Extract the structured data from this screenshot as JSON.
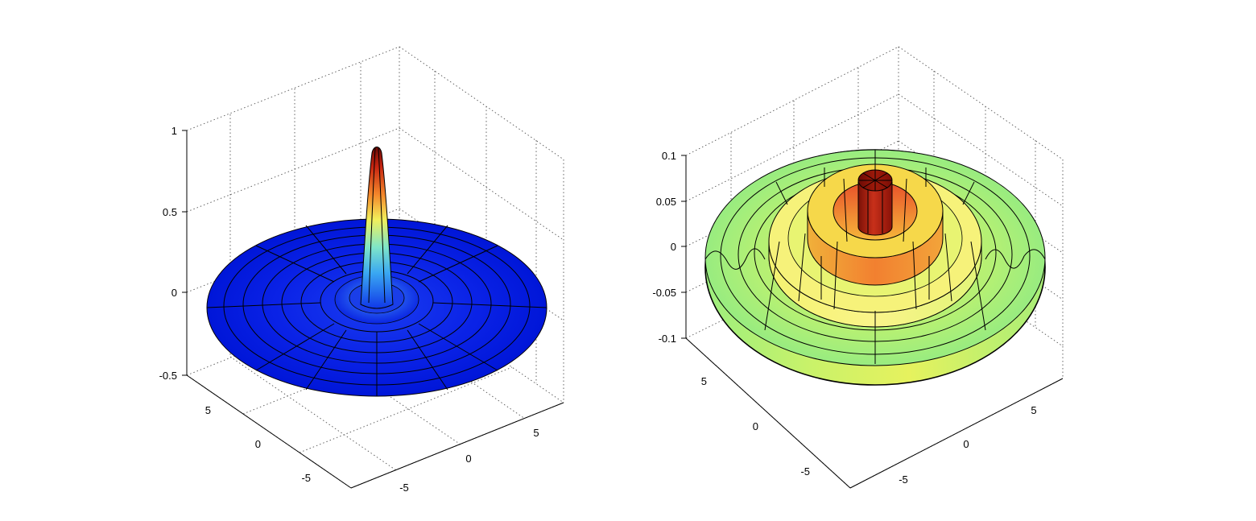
{
  "chart_data": [
    {
      "type": "surface",
      "title": "",
      "function": "sin(r)/r (radial sinc surface over a disk)",
      "z_ticks": [
        "-0.5",
        "0",
        "0.5",
        "1"
      ],
      "x_ticks": [
        "-5",
        "0",
        "5"
      ],
      "y_ticks": [
        "5",
        "0",
        "-5"
      ],
      "zlim": [
        -0.5,
        1
      ],
      "xlim": [
        -8,
        8
      ],
      "ylim": [
        -8,
        8
      ],
      "grid": true,
      "colormap": "jet",
      "peak_value": 1.0
    },
    {
      "type": "surface",
      "title": "",
      "function": "radial ripple surface, z clipped to [-0.1, 0.1]",
      "z_ticks": [
        "-0.1",
        "-0.05",
        "0",
        "0.05",
        "0.1"
      ],
      "x_ticks": [
        "-5",
        "0",
        "5"
      ],
      "y_ticks": [
        "5",
        "0",
        "-5"
      ],
      "zlim": [
        -0.1,
        0.1
      ],
      "xlim": [
        -8,
        8
      ],
      "ylim": [
        -8,
        8
      ],
      "grid": true,
      "colormap": "jet"
    }
  ],
  "colors": {
    "jet_blue": "#0015e8",
    "jet_cyan": "#5fe0f8",
    "jet_green": "#9af07c",
    "jet_yellow": "#f4f45a",
    "jet_orange": "#f3862e",
    "jet_red": "#8a1208"
  }
}
